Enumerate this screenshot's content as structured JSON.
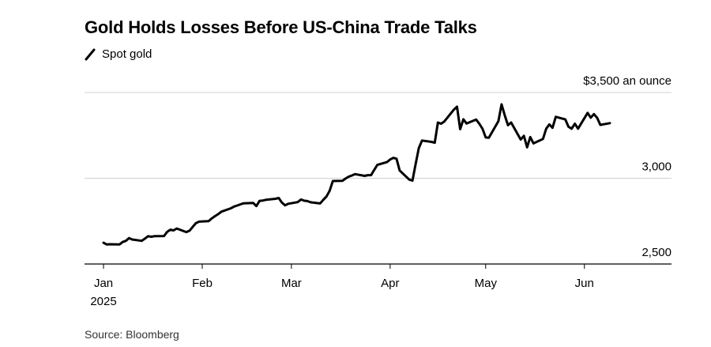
{
  "title": "Gold Holds Losses Before US-China Trade Talks",
  "legend": {
    "label": "Spot gold",
    "color": "#000000"
  },
  "source": "Source: Bloomberg",
  "chart_data": {
    "type": "line",
    "title": "Gold Holds Losses Before US-China Trade Talks",
    "y_axis": {
      "ticks": [
        2500,
        3000,
        3500
      ],
      "tick_labels": [
        "2,500",
        "3,000",
        "$3,500 an ounce"
      ],
      "ylim": [
        2500,
        3500
      ],
      "position": "right"
    },
    "x_axis": {
      "tick_labels": [
        "Jan",
        "Feb",
        "Mar",
        "Apr",
        "May",
        "Jun"
      ],
      "tick_dates": [
        "2025-01-01",
        "2025-02-01",
        "2025-03-01",
        "2025-04-01",
        "2025-05-01",
        "2025-06-01"
      ],
      "year_label": "2025",
      "xlim": [
        "2024-12-31",
        "2025-06-30"
      ]
    },
    "grid": "horizontal",
    "series": [
      {
        "name": "Spot gold",
        "color": "#000000",
        "points": [
          [
            "2025-01-01",
            2624
          ],
          [
            "2025-01-02",
            2614
          ],
          [
            "2025-01-03",
            2615
          ],
          [
            "2025-01-06",
            2614
          ],
          [
            "2025-01-07",
            2628
          ],
          [
            "2025-01-08",
            2635
          ],
          [
            "2025-01-09",
            2651
          ],
          [
            "2025-01-10",
            2643
          ],
          [
            "2025-01-13",
            2635
          ],
          [
            "2025-01-14",
            2648
          ],
          [
            "2025-01-15",
            2662
          ],
          [
            "2025-01-16",
            2659
          ],
          [
            "2025-01-17",
            2662
          ],
          [
            "2025-01-20",
            2663
          ],
          [
            "2025-01-21",
            2688
          ],
          [
            "2025-01-22",
            2700
          ],
          [
            "2025-01-23",
            2696
          ],
          [
            "2025-01-24",
            2707
          ],
          [
            "2025-01-27",
            2686
          ],
          [
            "2025-01-28",
            2694
          ],
          [
            "2025-01-29",
            2716
          ],
          [
            "2025-01-30",
            2738
          ],
          [
            "2025-01-31",
            2747
          ],
          [
            "2025-02-03",
            2750
          ],
          [
            "2025-02-04",
            2766
          ],
          [
            "2025-02-05",
            2779
          ],
          [
            "2025-02-06",
            2791
          ],
          [
            "2025-02-07",
            2805
          ],
          [
            "2025-02-10",
            2825
          ],
          [
            "2025-02-11",
            2835
          ],
          [
            "2025-02-12",
            2841
          ],
          [
            "2025-02-13",
            2848
          ],
          [
            "2025-02-14",
            2854
          ],
          [
            "2025-02-17",
            2856
          ],
          [
            "2025-02-18",
            2838
          ],
          [
            "2025-02-19",
            2868
          ],
          [
            "2025-02-20",
            2870
          ],
          [
            "2025-02-21",
            2874
          ],
          [
            "2025-02-24",
            2880
          ],
          [
            "2025-02-25",
            2885
          ],
          [
            "2025-02-26",
            2858
          ],
          [
            "2025-02-27",
            2842
          ],
          [
            "2025-02-28",
            2851
          ],
          [
            "2025-03-03",
            2861
          ],
          [
            "2025-03-04",
            2876
          ],
          [
            "2025-03-05",
            2869
          ],
          [
            "2025-03-06",
            2867
          ],
          [
            "2025-03-07",
            2860
          ],
          [
            "2025-03-10",
            2853
          ],
          [
            "2025-03-11",
            2874
          ],
          [
            "2025-03-12",
            2893
          ],
          [
            "2025-03-13",
            2927
          ],
          [
            "2025-03-14",
            2984
          ],
          [
            "2025-03-17",
            2985
          ],
          [
            "2025-03-18",
            2998
          ],
          [
            "2025-03-19",
            3009
          ],
          [
            "2025-03-20",
            3016
          ],
          [
            "2025-03-21",
            3024
          ],
          [
            "2025-03-24",
            3014
          ],
          [
            "2025-03-25",
            3018
          ],
          [
            "2025-03-26",
            3018
          ],
          [
            "2025-03-27",
            3049
          ],
          [
            "2025-03-28",
            3078
          ],
          [
            "2025-03-31",
            3094
          ],
          [
            "2025-04-01",
            3109
          ],
          [
            "2025-04-02",
            3119
          ],
          [
            "2025-04-03",
            3114
          ],
          [
            "2025-04-04",
            3045
          ],
          [
            "2025-04-07",
            2992
          ],
          [
            "2025-04-08",
            2986
          ],
          [
            "2025-04-09",
            3082
          ],
          [
            "2025-04-10",
            3175
          ],
          [
            "2025-04-11",
            3220
          ],
          [
            "2025-04-14",
            3212
          ],
          [
            "2025-04-15",
            3207
          ],
          [
            "2025-04-16",
            3325
          ],
          [
            "2025-04-17",
            3318
          ],
          [
            "2025-04-18",
            3331
          ],
          [
            "2025-04-21",
            3400
          ],
          [
            "2025-04-22",
            3417
          ],
          [
            "2025-04-23",
            3286
          ],
          [
            "2025-04-24",
            3344
          ],
          [
            "2025-04-25",
            3319
          ],
          [
            "2025-04-28",
            3342
          ],
          [
            "2025-04-29",
            3318
          ],
          [
            "2025-04-30",
            3288
          ],
          [
            "2025-05-01",
            3238
          ],
          [
            "2025-05-02",
            3236
          ],
          [
            "2025-05-05",
            3333
          ],
          [
            "2025-05-06",
            3431
          ],
          [
            "2025-05-07",
            3366
          ],
          [
            "2025-05-08",
            3309
          ],
          [
            "2025-05-09",
            3325
          ],
          [
            "2025-05-12",
            3226
          ],
          [
            "2025-05-13",
            3247
          ],
          [
            "2025-05-14",
            3180
          ],
          [
            "2025-05-15",
            3240
          ],
          [
            "2025-05-16",
            3203
          ],
          [
            "2025-05-19",
            3229
          ],
          [
            "2025-05-20",
            3289
          ],
          [
            "2025-05-21",
            3314
          ],
          [
            "2025-05-22",
            3294
          ],
          [
            "2025-05-23",
            3358
          ],
          [
            "2025-05-26",
            3343
          ],
          [
            "2025-05-27",
            3300
          ],
          [
            "2025-05-28",
            3289
          ],
          [
            "2025-05-29",
            3318
          ],
          [
            "2025-05-30",
            3289
          ],
          [
            "2025-06-02",
            3381
          ],
          [
            "2025-06-03",
            3353
          ],
          [
            "2025-06-04",
            3374
          ],
          [
            "2025-06-05",
            3352
          ],
          [
            "2025-06-06",
            3311
          ],
          [
            "2025-06-09",
            3321
          ]
        ]
      }
    ]
  }
}
